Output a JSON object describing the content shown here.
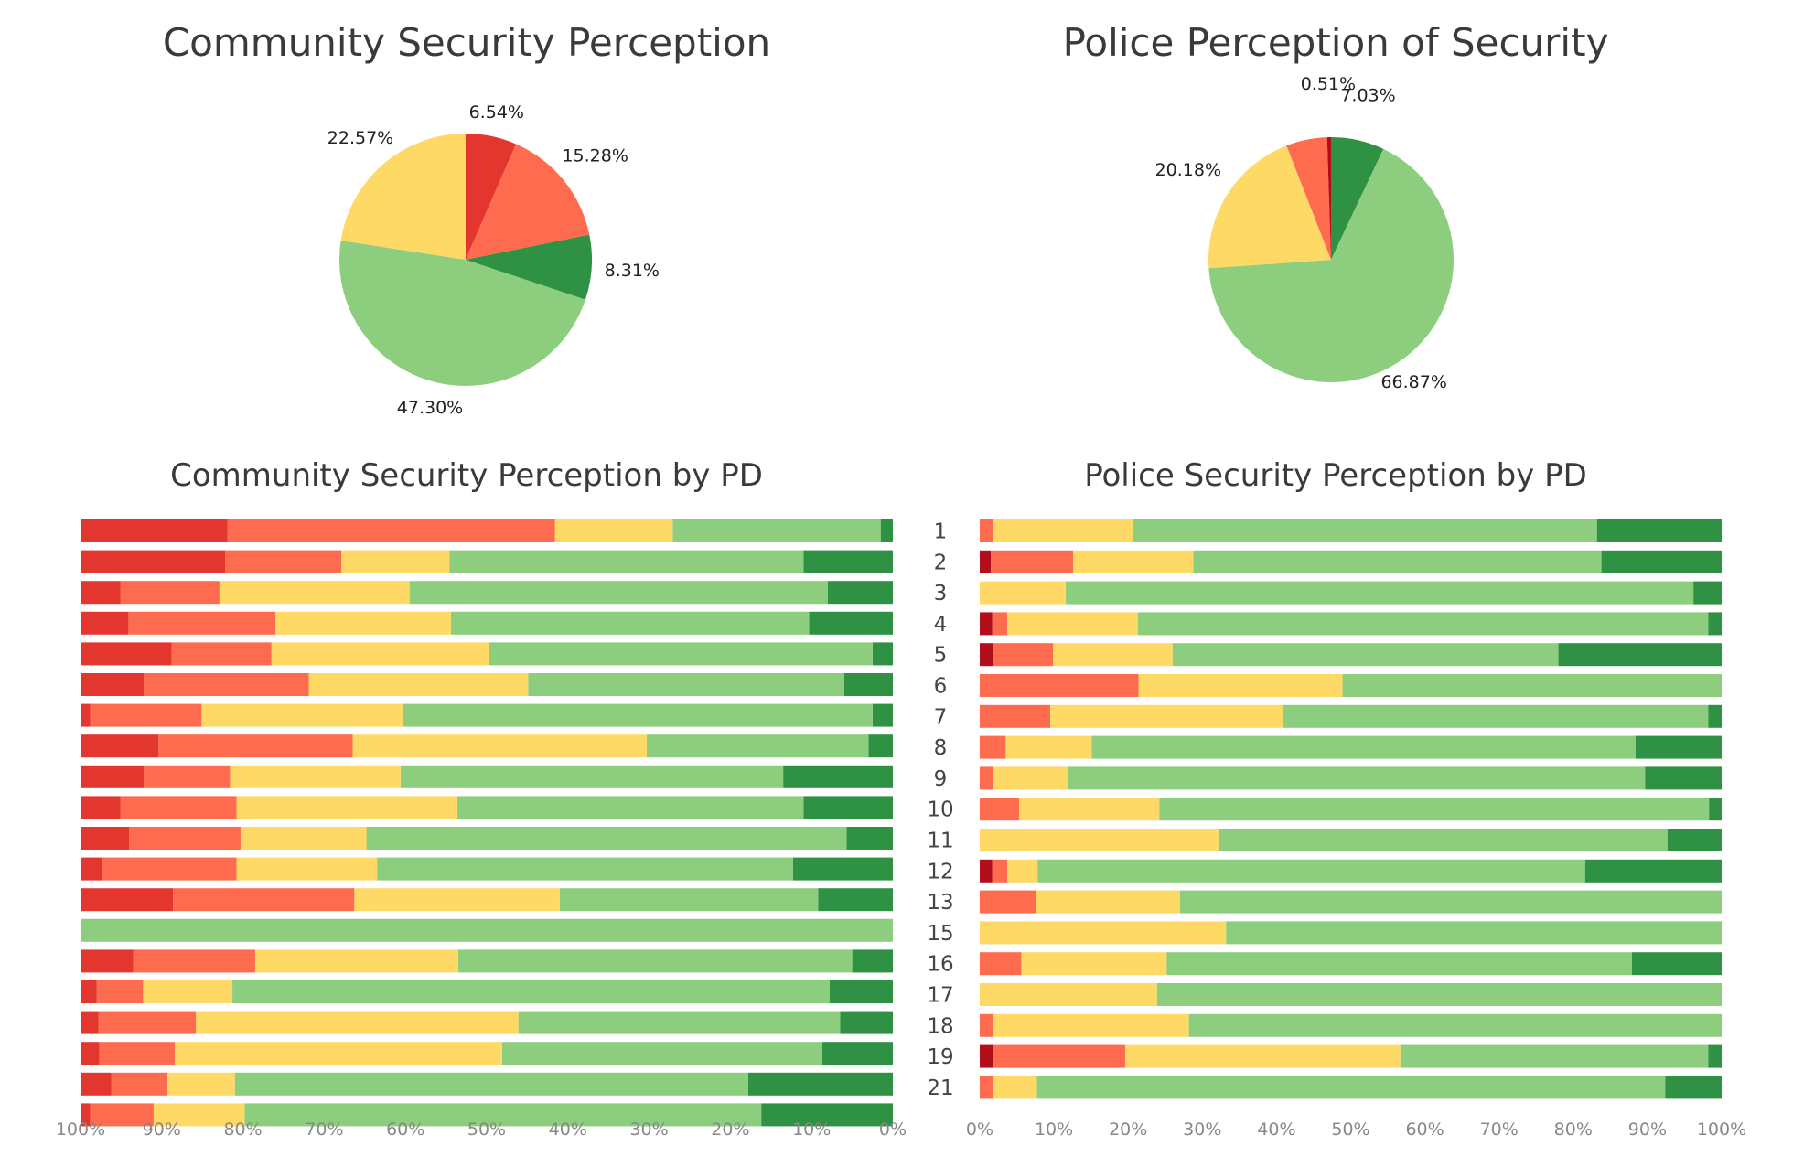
{
  "colors": {
    "very_high": "#2E9144",
    "high": "#8CCE7D",
    "medium": "#FFD966",
    "low": "#FF6B4E",
    "very_low": "#E2362F",
    "critical": "#B30F1A"
  },
  "chart_data": [
    {
      "type": "pie",
      "title": "Community Security Perception",
      "slices": [
        {
          "category": "very_low",
          "value": 6.54,
          "label": "6.54%"
        },
        {
          "category": "low",
          "value": 15.28,
          "label": "15.28%"
        },
        {
          "category": "very_high",
          "value": 8.31,
          "label": "8.31%"
        },
        {
          "category": "high",
          "value": 47.3,
          "label": "47.30%"
        },
        {
          "category": "medium",
          "value": 22.57,
          "label": "22.57%"
        }
      ]
    },
    {
      "type": "pie",
      "title": "Police Perception of Security",
      "slices": [
        {
          "category": "very_high",
          "value": 7.03,
          "label": "7.03%"
        },
        {
          "category": "high",
          "value": 66.87,
          "label": "66.87%"
        },
        {
          "category": "medium",
          "value": 20.18,
          "label": "20.18%"
        },
        {
          "category": "low",
          "value": 5.41,
          "label": ""
        },
        {
          "category": "critical",
          "value": 0.51,
          "label": "0.51%"
        }
      ]
    },
    {
      "type": "bar",
      "orientation": "horizontal",
      "stacked": "percent",
      "title": "Community Security Perception by PD",
      "x_direction": "reversed",
      "xlim": [
        0,
        100
      ],
      "xticks": [
        "100%",
        "90%",
        "80%",
        "70%",
        "60%",
        "50%",
        "40%",
        "30%",
        "20%",
        "10%",
        "0%"
      ],
      "categories": [
        "",
        "",
        "",
        "",
        "",
        "",
        "",
        "",
        "",
        "",
        "",
        "",
        "",
        "",
        "",
        "",
        "",
        "",
        "",
        ""
      ],
      "series": [
        {
          "category": "very_high",
          "values": [
            1.5,
            11,
            8,
            10.3,
            2.5,
            6,
            2.5,
            3,
            13.5,
            11,
            5.7,
            12.3,
            9.2,
            0,
            5,
            7.8,
            6.5,
            8.7,
            17.8,
            16.2
          ]
        },
        {
          "category": "high",
          "values": [
            25.6,
            43.6,
            51.5,
            44.1,
            47.2,
            38.9,
            57.8,
            27.3,
            47.1,
            42.6,
            59.1,
            51.2,
            31.8,
            100,
            48.5,
            73.5,
            39.6,
            39.4,
            63.2,
            63.6
          ]
        },
        {
          "category": "medium",
          "values": [
            14.5,
            13.3,
            23.4,
            21.6,
            26.8,
            27,
            24.8,
            36.2,
            21,
            27.2,
            15.5,
            17.3,
            25.3,
            0,
            25,
            11,
            39.7,
            40.3,
            8.3,
            11.2
          ]
        },
        {
          "category": "low",
          "values": [
            40.3,
            14.3,
            12.2,
            18.1,
            12.3,
            20.3,
            13.7,
            23.9,
            10.6,
            14.3,
            13.7,
            16.5,
            22.3,
            0,
            15,
            5.7,
            12,
            9.3,
            6.9,
            7.8
          ]
        },
        {
          "category": "very_low",
          "values": [
            18.1,
            17.8,
            4.9,
            5.9,
            11.2,
            7.8,
            1.2,
            9.6,
            7.8,
            4.9,
            6,
            2.7,
            11.4,
            0,
            6.5,
            2,
            2.2,
            2.3,
            3.8,
            1.2
          ]
        }
      ]
    },
    {
      "type": "bar",
      "orientation": "horizontal",
      "stacked": "percent",
      "title": "Police Security Perception by PD",
      "xlim": [
        0,
        100
      ],
      "xticks": [
        "0%",
        "10%",
        "20%",
        "30%",
        "40%",
        "50%",
        "60%",
        "70%",
        "80%",
        "90%",
        "100%"
      ],
      "categories": [
        "1",
        "2",
        "3",
        "4",
        "5",
        "6",
        "7",
        "8",
        "9",
        "10",
        "11",
        "12",
        "13",
        "15",
        "16",
        "17",
        "18",
        "19",
        "21"
      ],
      "series": [
        {
          "category": "critical",
          "values": [
            0,
            1.5,
            0,
            1.7,
            1.8,
            0,
            0,
            0,
            0,
            0,
            0,
            1.7,
            0,
            0,
            0,
            0,
            0,
            1.8,
            0
          ]
        },
        {
          "category": "low",
          "values": [
            1.8,
            11.1,
            0,
            2,
            8.1,
            21.4,
            9.5,
            3.5,
            1.8,
            5.3,
            0,
            2,
            7.6,
            0,
            5.6,
            0,
            1.8,
            17.8,
            1.8
          ]
        },
        {
          "category": "medium",
          "values": [
            18.9,
            16.2,
            11.6,
            17.6,
            16.1,
            27.5,
            31.4,
            11.6,
            10.1,
            18.9,
            32.2,
            4.1,
            19.4,
            33.2,
            19.6,
            23.9,
            26.4,
            37.1,
            5.9
          ]
        },
        {
          "category": "high",
          "values": [
            62.5,
            55,
            84.6,
            76.9,
            52,
            51.1,
            57.3,
            73.3,
            77.8,
            74.1,
            60.5,
            73.8,
            73,
            66.8,
            62.7,
            76.1,
            71.8,
            41.5,
            84.7
          ]
        },
        {
          "category": "very_high",
          "values": [
            16.8,
            16.2,
            3.8,
            1.8,
            22,
            0,
            1.8,
            11.6,
            10.3,
            1.7,
            7.3,
            18.4,
            0,
            0,
            12.1,
            0,
            0,
            1.8,
            7.6
          ]
        }
      ]
    }
  ]
}
